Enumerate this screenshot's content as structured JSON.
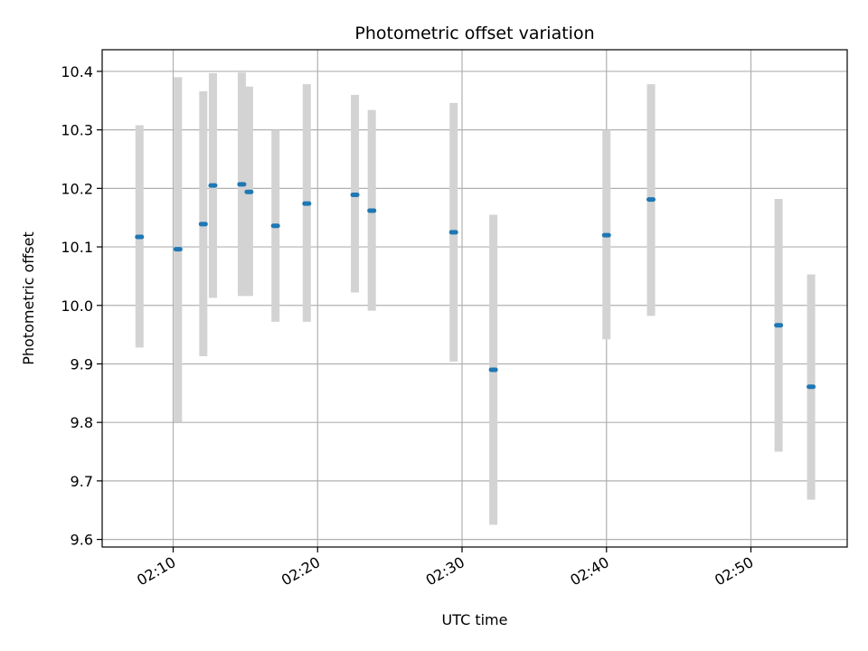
{
  "chart_data": {
    "type": "scatter",
    "title": "Photometric offset variation",
    "xlabel": "UTC time",
    "ylabel": "Photometric offset",
    "x_tick_labels": [
      "02:10",
      "02:20",
      "02:30",
      "02:40",
      "02:50"
    ],
    "y_tick_labels": [
      "9.6",
      "9.7",
      "9.8",
      "9.9",
      "10.0",
      "10.1",
      "10.2",
      "10.3",
      "10.4"
    ],
    "xlim": [
      "02:05:05",
      "02:56:40"
    ],
    "ylim": [
      9.587,
      10.437
    ],
    "grid": true,
    "colors": {
      "marker": "#1f77b4",
      "errorbar": "#d3d3d3",
      "grid": "#b0b0b0"
    },
    "series": [
      {
        "points": [
          {
            "t": "02:07:40",
            "y": 10.117,
            "ylow": 9.928,
            "yhigh": 10.308
          },
          {
            "t": "02:10:20",
            "y": 10.096,
            "ylow": 9.801,
            "yhigh": 10.39
          },
          {
            "t": "02:12:05",
            "y": 10.139,
            "ylow": 9.913,
            "yhigh": 10.366
          },
          {
            "t": "02:12:45",
            "y": 10.205,
            "ylow": 10.013,
            "yhigh": 10.397
          },
          {
            "t": "02:14:45",
            "y": 10.207,
            "ylow": 10.016,
            "yhigh": 10.398
          },
          {
            "t": "02:15:15",
            "y": 10.194,
            "ylow": 10.016,
            "yhigh": 10.374
          },
          {
            "t": "02:17:05",
            "y": 10.136,
            "ylow": 9.972,
            "yhigh": 10.3
          },
          {
            "t": "02:19:15",
            "y": 10.174,
            "ylow": 9.972,
            "yhigh": 10.378
          },
          {
            "t": "02:22:35",
            "y": 10.189,
            "ylow": 10.022,
            "yhigh": 10.36
          },
          {
            "t": "02:23:45",
            "y": 10.162,
            "ylow": 9.991,
            "yhigh": 10.334
          },
          {
            "t": "02:29:25",
            "y": 10.125,
            "ylow": 9.904,
            "yhigh": 10.346
          },
          {
            "t": "02:32:10",
            "y": 9.89,
            "ylow": 9.625,
            "yhigh": 10.155
          },
          {
            "t": "02:40:00",
            "y": 10.12,
            "ylow": 9.942,
            "yhigh": 10.3
          },
          {
            "t": "02:43:05",
            "y": 10.181,
            "ylow": 9.982,
            "yhigh": 10.378
          },
          {
            "t": "02:51:55",
            "y": 9.966,
            "ylow": 9.75,
            "yhigh": 10.182
          },
          {
            "t": "02:54:10",
            "y": 9.861,
            "ylow": 9.668,
            "yhigh": 10.053
          }
        ]
      }
    ]
  }
}
